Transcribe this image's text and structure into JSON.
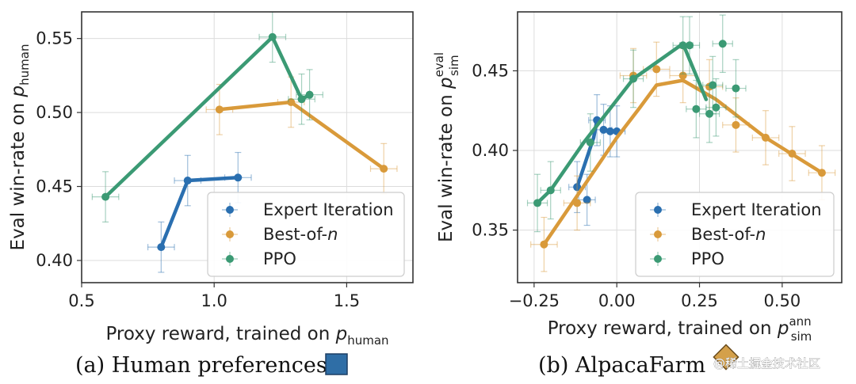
{
  "chart_data": [
    {
      "type": "line",
      "panel": "a",
      "caption": "(a) Human preferences",
      "caption_marker_color": "#2f6ea6",
      "xlabel_parts": [
        "Proxy reward, trained on ",
        "p",
        "human",
        ""
      ],
      "ylabel_parts": [
        "Eval win-rate on ",
        "p",
        "human",
        ""
      ],
      "xlim": [
        0.5,
        1.75
      ],
      "ylim": [
        0.385,
        0.568
      ],
      "xticks": [
        0.5,
        1.0,
        1.5
      ],
      "xtick_labels": [
        "0.5",
        "1.0",
        "1.5"
      ],
      "yticks": [
        0.4,
        0.45,
        0.5,
        0.55
      ],
      "ytick_labels": [
        "0.40",
        "0.45",
        "0.50",
        "0.55"
      ],
      "legend_position": "lower-right",
      "series": [
        {
          "name": "Expert Iteration",
          "color": "#2a6fb0",
          "line": [
            [
              0.8,
              0.409
            ],
            [
              0.9,
              0.454
            ],
            [
              1.09,
              0.456
            ]
          ],
          "points": [
            [
              0.8,
              0.409
            ],
            [
              0.9,
              0.454
            ],
            [
              1.09,
              0.456
            ]
          ],
          "xerr": 0.05,
          "yerr": 0.017
        },
        {
          "name": "Best-of-n",
          "color": "#d99a3a",
          "line": [
            [
              1.02,
              0.502
            ],
            [
              1.29,
              0.507
            ],
            [
              1.64,
              0.462
            ]
          ],
          "points": [
            [
              1.02,
              0.502
            ],
            [
              1.29,
              0.507
            ],
            [
              1.64,
              0.462
            ]
          ],
          "xerr": 0.05,
          "yerr": 0.017
        },
        {
          "name": "PPO",
          "color": "#3b9a74",
          "line": [
            [
              0.59,
              0.443
            ],
            [
              1.22,
              0.551
            ],
            [
              1.33,
              0.509
            ],
            [
              1.36,
              0.512
            ]
          ],
          "points": [
            [
              0.59,
              0.443
            ],
            [
              1.22,
              0.551
            ],
            [
              1.33,
              0.509
            ],
            [
              1.36,
              0.512
            ]
          ],
          "xerr": 0.05,
          "yerr": 0.017
        }
      ],
      "legend_labels": [
        "Expert Iteration",
        "Best-of-",
        "PPO"
      ],
      "legend_italic": [
        "",
        "n",
        ""
      ]
    },
    {
      "type": "line",
      "panel": "b",
      "caption": "(b) AlpacaFarm",
      "caption_marker_color": "#d4a04a",
      "xlabel_parts": [
        "Proxy reward, trained on ",
        "p",
        "sim",
        "ann"
      ],
      "ylabel_parts": [
        "Eval win-rate on ",
        "p",
        "sim",
        "eval"
      ],
      "xlim": [
        -0.3,
        0.68
      ],
      "ylim": [
        0.317,
        0.487
      ],
      "xticks": [
        -0.25,
        0.0,
        0.25,
        0.5
      ],
      "xtick_labels": [
        "−0.25",
        "0.00",
        "0.25",
        "0.50"
      ],
      "yticks": [
        0.35,
        0.4,
        0.45
      ],
      "ytick_labels": [
        "0.35",
        "0.40",
        "0.45"
      ],
      "legend_position": "lower-right",
      "series": [
        {
          "name": "Expert Iteration",
          "color": "#2a6fb0",
          "line": [
            [
              -0.12,
              0.377
            ],
            [
              -0.07,
              0.408
            ],
            [
              -0.06,
              0.419
            ]
          ],
          "points": [
            [
              -0.12,
              0.377
            ],
            [
              -0.09,
              0.369
            ],
            [
              -0.06,
              0.419
            ],
            [
              -0.04,
              0.413
            ],
            [
              -0.02,
              0.412
            ],
            [
              0.0,
              0.412
            ]
          ],
          "xerr": 0.025,
          "yerr": 0.016
        },
        {
          "name": "Best-of-n",
          "color": "#d99a3a",
          "line": [
            [
              -0.22,
              0.341
            ],
            [
              0.0,
              0.408
            ],
            [
              0.07,
              0.427
            ],
            [
              0.12,
              0.441
            ],
            [
              0.2,
              0.444
            ],
            [
              0.3,
              0.432
            ],
            [
              0.45,
              0.408
            ],
            [
              0.62,
              0.386
            ]
          ],
          "points": [
            [
              -0.22,
              0.341
            ],
            [
              -0.12,
              0.367
            ],
            [
              0.05,
              0.447
            ],
            [
              0.12,
              0.451
            ],
            [
              0.2,
              0.447
            ],
            [
              0.28,
              0.44
            ],
            [
              0.36,
              0.416
            ],
            [
              0.45,
              0.408
            ],
            [
              0.53,
              0.398
            ],
            [
              0.62,
              0.386
            ]
          ],
          "xerr": 0.04,
          "yerr": 0.017
        },
        {
          "name": "PPO",
          "color": "#3b9a74",
          "line": [
            [
              -0.24,
              0.367
            ],
            [
              -0.2,
              0.375
            ],
            [
              -0.1,
              0.405
            ],
            [
              0.05,
              0.445
            ],
            [
              0.2,
              0.467
            ],
            [
              0.24,
              0.447
            ],
            [
              0.27,
              0.432
            ]
          ],
          "points": [
            [
              -0.24,
              0.367
            ],
            [
              -0.2,
              0.375
            ],
            [
              -0.08,
              0.405
            ],
            [
              0.05,
              0.445
            ],
            [
              0.2,
              0.466
            ],
            [
              0.22,
              0.466
            ],
            [
              0.24,
              0.426
            ],
            [
              0.28,
              0.423
            ],
            [
              0.29,
              0.441
            ],
            [
              0.3,
              0.427
            ],
            [
              0.32,
              0.467
            ],
            [
              0.36,
              0.439
            ]
          ],
          "xerr": 0.03,
          "yerr": 0.018
        }
      ],
      "legend_labels": [
        "Expert Iteration",
        "Best-of-",
        "PPO"
      ],
      "legend_italic": [
        "",
        "n",
        ""
      ]
    }
  ],
  "watermark": "@稀土掘金技术社区"
}
